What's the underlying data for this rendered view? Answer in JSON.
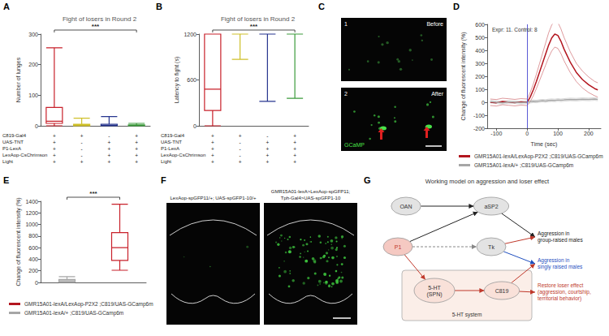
{
  "chart_data": [
    {
      "panel": "A",
      "type": "boxplot",
      "title": "Fight of losers in Round 2",
      "y_label": "Number of lunges",
      "categories": [
        null,
        null,
        null,
        null
      ],
      "ylim": [
        0,
        300
      ],
      "yticks": [
        0,
        100,
        200,
        300
      ],
      "tick_labels": "y",
      "grid": false,
      "boxes": [
        {
          "color": "#c8202a",
          "values": [
            0,
            8,
            15,
            60,
            255
          ]
        },
        {
          "color": "#cfc02a",
          "values": [
            0,
            0,
            2,
            5,
            25
          ]
        },
        {
          "color": "#26358f",
          "values": [
            0,
            0,
            1,
            5,
            30
          ]
        },
        {
          "color": "#3c9b3c",
          "values": [
            0,
            0,
            0,
            3,
            8
          ]
        }
      ],
      "significance": "***",
      "genotypes": [
        {
          "label": "C819-Gal4",
          "values": [
            "+",
            "+",
            "-",
            "+"
          ]
        },
        {
          "label": "UAS-TNT",
          "values": [
            "+",
            "-",
            "+",
            "+"
          ]
        },
        {
          "label": "P1-LexA",
          "values": [
            "+",
            "-",
            "+",
            "+"
          ]
        },
        {
          "label": "LexAop-CsChrimson",
          "values": [
            "+",
            "-",
            "+",
            "+"
          ]
        },
        {
          "label": "Light",
          "values": [
            "+",
            "+",
            "+",
            "+"
          ]
        }
      ]
    },
    {
      "panel": "B",
      "type": "boxplot",
      "title": "Fight of losers in Round 2",
      "y_label": "Latency to fight (s)",
      "categories": [
        null,
        null,
        null,
        null
      ],
      "ylim": [
        0,
        1200
      ],
      "yticks": [
        0,
        600,
        1200
      ],
      "tick_labels": "y",
      "grid": false,
      "boxes": [
        {
          "color": "#c8202a",
          "values": [
            0,
            200,
            480,
            1200,
            1200
          ]
        },
        {
          "color": "#cfc02a",
          "values": [
            870,
            1200,
            1200,
            1200,
            1200
          ]
        },
        {
          "color": "#26358f",
          "values": [
            320,
            1200,
            1200,
            1200,
            1200
          ]
        },
        {
          "color": "#3c9b3c",
          "values": [
            360,
            1200,
            1200,
            1200,
            1200
          ]
        }
      ],
      "significance": "***",
      "genotypes": [
        {
          "label": "C819-Gal4",
          "values": [
            "+",
            "+",
            "-",
            "+"
          ]
        },
        {
          "label": "UAS-TNT",
          "values": [
            "+",
            "-",
            "+",
            "+"
          ]
        },
        {
          "label": "P1-LexA",
          "values": [
            "+",
            "-",
            "+",
            "+"
          ]
        },
        {
          "label": "LexAop-CsChrimson",
          "values": [
            "+",
            "-",
            "+",
            "+"
          ]
        },
        {
          "label": "Light",
          "values": [
            "+",
            "+",
            "+",
            "+"
          ]
        }
      ]
    },
    {
      "panel": "D",
      "type": "line",
      "x_label": "Time (sec)",
      "y_label": "Change of fluorescent intensity (%)",
      "annotation": "Expr: 11. Control: 8",
      "xlim": [
        -130,
        240
      ],
      "xticks": [
        -100,
        0,
        100,
        200
      ],
      "ylim": [
        -200,
        600
      ],
      "yticks": [
        -200,
        -100,
        0,
        100,
        200,
        300,
        400,
        500,
        600
      ],
      "grid": false,
      "vline": 0,
      "x": [
        -120,
        -100,
        -80,
        -60,
        -40,
        -20,
        0,
        10,
        20,
        30,
        40,
        50,
        60,
        70,
        80,
        90,
        100,
        110,
        120,
        140,
        160,
        180,
        200,
        220,
        230
      ],
      "series": [
        {
          "name": "GMR15A01-lexA/LexAop-P2X2 ;C819/UAS-GCamp6m",
          "color": "#b3161f",
          "values": [
            0,
            -4,
            6,
            2,
            -3,
            3,
            0,
            40,
            95,
            160,
            230,
            300,
            370,
            440,
            495,
            525,
            515,
            470,
            410,
            310,
            230,
            175,
            135,
            105,
            95
          ],
          "error": [
            25,
            25,
            25,
            25,
            25,
            25,
            25,
            35,
            45,
            55,
            65,
            75,
            85,
            95,
            100,
            100,
            100,
            95,
            90,
            80,
            70,
            65,
            60,
            55,
            55
          ]
        },
        {
          "name": "GMR15A01-lexA/+ ;C819/UAS-GCamp6m",
          "color": "#a6a6a6",
          "values": [
            5,
            0,
            -4,
            3,
            0,
            -3,
            0,
            4,
            8,
            6,
            10,
            12,
            10,
            14,
            16,
            14,
            18,
            15,
            18,
            22,
            20,
            24,
            22,
            25,
            22
          ],
          "error": [
            10,
            10,
            10,
            10,
            10,
            10,
            10,
            10,
            10,
            10,
            10,
            10,
            10,
            10,
            10,
            10,
            10,
            10,
            10,
            10,
            10,
            10,
            10,
            10,
            10
          ]
        }
      ]
    },
    {
      "panel": "E",
      "type": "boxplot",
      "y_label": "Change of fluorescent intensity (%)",
      "categories": [
        null,
        null
      ],
      "ylim": [
        0,
        1400
      ],
      "yticks": [
        0,
        200,
        400,
        600,
        800,
        1000,
        1200,
        1400
      ],
      "tick_labels": "y",
      "grid": false,
      "boxes": [
        {
          "name": "GMR15A01-lexA/+ ;C819/UAS-GCamp6m",
          "color": "#a6a6a6",
          "values": [
            0,
            10,
            30,
            50,
            100
          ]
        },
        {
          "name": "GMR15A01-lexA/LexAop-P2X2 ;C819/UAS-GCamp6m",
          "color": "#c8202a",
          "values": [
            210,
            380,
            600,
            860,
            1350
          ]
        }
      ],
      "significance": "***"
    }
  ],
  "images": [
    {
      "panel": "C",
      "items": [
        {
          "number": "1",
          "caption": "Before"
        },
        {
          "number": "2",
          "caption": "After",
          "marker_label": "GCaMP"
        }
      ]
    },
    {
      "panel": "F",
      "items": [
        {
          "caption_lines": [
            "LexAop-spGFP11/+; UAS-spGFP1-10/+"
          ]
        },
        {
          "caption_lines": [
            "GMR15A01-lexA>LexAop-spGFP11;",
            "Tph-Gal4>UAS-spGFP1-10"
          ]
        }
      ]
    }
  ],
  "diagram": {
    "panel": "G",
    "title": "Working model on aggression and loser effect",
    "group": {
      "label": "5-HT system"
    },
    "nodes": [
      {
        "lines": [
          "OAN"
        ],
        "shape": "ellipse",
        "color": "#e3e3e3",
        "text_color": "#333333"
      },
      {
        "lines": [
          "aSP2"
        ],
        "shape": "ellipse",
        "color": "#e3e3e3",
        "text_color": "#333333"
      },
      {
        "lines": [
          "P1"
        ],
        "shape": "ellipse",
        "color": "#f5c9c2",
        "text_color": "#c0392b"
      },
      {
        "lines": [
          "Tk"
        ],
        "shape": "ellipse",
        "color": "#e3e3e3",
        "text_color": "#333333"
      },
      {
        "lines": [
          "5-HT",
          "(SPN)"
        ],
        "shape": "ellipse",
        "color": "#f9e1d9",
        "text_color": "#333333"
      },
      {
        "lines": [
          "C819"
        ],
        "shape": "ellipse",
        "color": "#f9e1d9",
        "text_color": "#333333"
      },
      {
        "lines": [
          "Aggression in",
          "group-raised males"
        ],
        "shape": "text",
        "color": "#222222"
      },
      {
        "lines": [
          "Aggression in",
          "singly raised males"
        ],
        "shape": "text",
        "color": "#1f4fbf"
      },
      {
        "lines": [
          "Restore loser effect",
          "(aggression, courtship,",
          "territorial behavior)"
        ],
        "shape": "text",
        "color": "#c0392b"
      }
    ],
    "edges": [
      {
        "from": 0,
        "to": 1,
        "color": "#222222"
      },
      {
        "from": 2,
        "to": 1,
        "color": "#222222"
      },
      {
        "from": 1,
        "to": 6,
        "color": "#222222"
      },
      {
        "from": 2,
        "to": 3,
        "color": "#888888",
        "line_style": "dashed"
      },
      {
        "from": 3,
        "to": 6,
        "color": "#c0392b"
      },
      {
        "from": 3,
        "to": 7,
        "color": "#1f4fbf"
      },
      {
        "from": 2,
        "to": 4,
        "color": "#c0392b"
      },
      {
        "from": 4,
        "to": 5,
        "color": "#c0392b"
      },
      {
        "from": 5,
        "to": 7,
        "color": "#c0392b"
      },
      {
        "from": 5,
        "to": 8,
        "color": "#c0392b"
      }
    ]
  }
}
